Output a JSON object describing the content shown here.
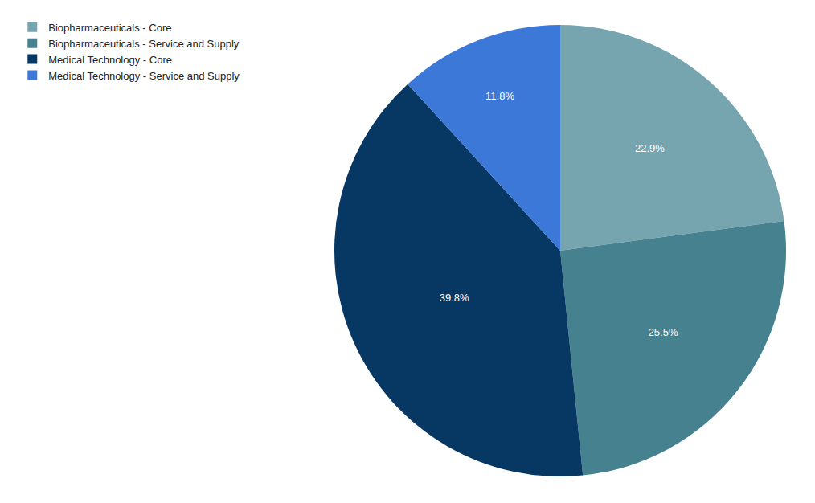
{
  "chart_data": {
    "type": "pie",
    "categories": [
      "Biopharmaceuticals - Core",
      "Biopharmaceuticals - Service and Supply",
      "Medical Technology - Core",
      "Medical Technology - Service and Supply"
    ],
    "values": [
      22.9,
      25.5,
      39.8,
      11.8
    ],
    "value_labels": [
      "22.9%",
      "25.5%",
      "39.8%",
      "11.8%"
    ],
    "colors": [
      "#76a5af",
      "#45818e",
      "#073763",
      "#3c78d8"
    ],
    "data_labels": true,
    "legend": "top-left"
  }
}
